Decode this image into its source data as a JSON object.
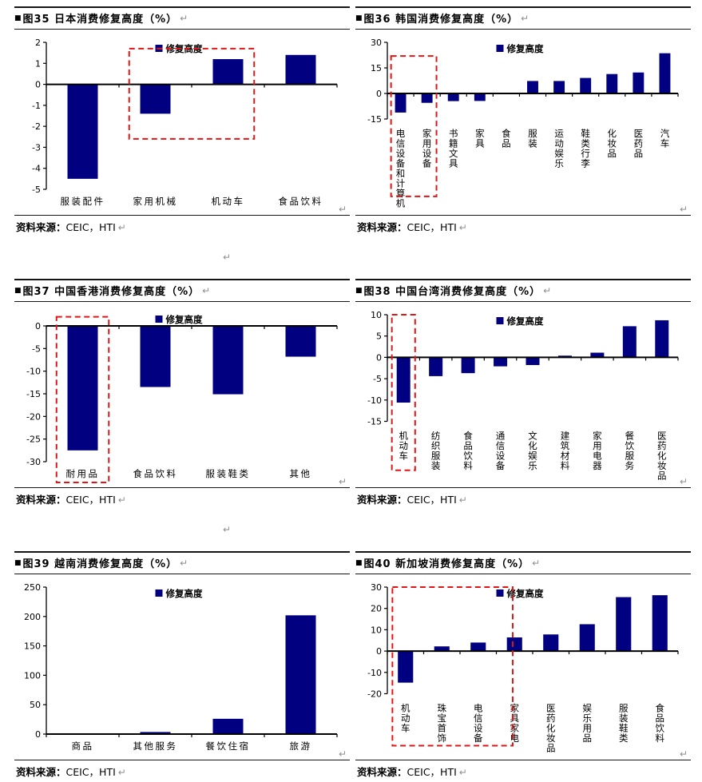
{
  "marks": {
    "paragraph": "↵",
    "bullet": "■"
  },
  "colors": {
    "bar": "#000080",
    "red_box": "#e01616",
    "axis": "#000000",
    "border": "#151515",
    "paragraph_mark": "#8f8f8f"
  },
  "source": {
    "label": "资料来源：",
    "value": "CEIC，HTI"
  },
  "figures": [
    {
      "title": "图35 日本消费修复高度（%）"
    },
    {
      "title": "图36 韩国消费修复高度（%）"
    },
    {
      "title": "图37 中国香港消费修复高度（%）"
    },
    {
      "title": "图38 中国台湾消费修复高度（%）"
    },
    {
      "title": "图39 越南消费修复高度（%）"
    },
    {
      "title": "图40 新加坡消费修复高度（%）"
    }
  ],
  "chart_data": [
    {
      "type": "bar",
      "title": "图35 日本消费修复高度（%）",
      "legend": "修复高度",
      "legend_position": "top-center",
      "grid": false,
      "categories": [
        "服装配件",
        "家用机械",
        "机动车",
        "食品饮料"
      ],
      "values": [
        -4.5,
        -1.4,
        1.2,
        1.4
      ],
      "ylim": [
        -5,
        2
      ],
      "yticks": [
        2,
        1,
        0,
        -1,
        -2,
        -3,
        -4,
        -5
      ],
      "label_orientation": "horizontal",
      "red_box": {
        "cat_from": 1,
        "cat_to": 2,
        "top_value": 1.7,
        "bottom_value": -2.6
      }
    },
    {
      "type": "bar",
      "title": "图36 韩国消费修复高度（%）",
      "legend": "修复高度",
      "legend_position": "top-center",
      "grid": false,
      "categories": [
        "电信设备和计算机",
        "家用设备",
        "书籍文具",
        "家具",
        "食品",
        "服装",
        "运动娱乐",
        "鞋类行李",
        "化妆品",
        "医药品",
        "汽车"
      ],
      "values": [
        -11.2,
        -5.5,
        -4.5,
        -4.4,
        0,
        7.3,
        7.3,
        9.1,
        11.4,
        12.3,
        23.6
      ],
      "ylim": [
        -15,
        30
      ],
      "yticks": [
        30,
        15,
        0,
        -15
      ],
      "label_orientation": "vertical",
      "red_box": {
        "cat_from": 0,
        "cat_to": 1,
        "top_value": 22,
        "bottom_label_frac": 0.85
      }
    },
    {
      "type": "bar",
      "title": "图37 中国香港消费修复高度（%）",
      "legend": "修复高度",
      "legend_position": "top-center",
      "grid": false,
      "categories": [
        "耐用品",
        "食品饮料",
        "服装鞋类",
        "其他"
      ],
      "values": [
        -27.5,
        -13.5,
        -15.1,
        -6.8
      ],
      "ylim": [
        -30,
        0
      ],
      "yticks": [
        0,
        -5,
        -10,
        -15,
        -20,
        -25,
        -30
      ],
      "label_orientation": "horizontal",
      "red_box": {
        "cat_from": 0,
        "cat_to": 0,
        "top_value": 2,
        "bottom_label_frac": 1.0
      }
    },
    {
      "type": "bar",
      "title": "图38 中国台湾消费修复高度（%）",
      "legend": "修复高度",
      "legend_position": "top-center",
      "grid": false,
      "categories": [
        "机动车",
        "纺织服装",
        "食品饮料",
        "通信设备",
        "文化娱乐",
        "建筑材料",
        "家用电器",
        "餐饮服务",
        "医药化妆品"
      ],
      "values": [
        -10.6,
        -4.4,
        -3.7,
        -2.1,
        -1.8,
        0.4,
        1.1,
        7.3,
        8.7
      ],
      "ylim": [
        -15,
        10
      ],
      "yticks": [
        10,
        5,
        0,
        -5,
        -10,
        -15
      ],
      "label_orientation": "vertical",
      "red_box": {
        "cat_from": 0,
        "cat_to": 0,
        "top_value": 10,
        "bottom_label_frac": 0.8
      }
    },
    {
      "type": "bar",
      "title": "图39 越南消费修复高度（%）",
      "legend": "修复高度",
      "legend_position": "top-center",
      "grid": false,
      "categories": [
        "商品",
        "其他服务",
        "餐饮住宿",
        "旅游"
      ],
      "values": [
        0.5,
        3.5,
        26,
        202
      ],
      "ylim": [
        0,
        250
      ],
      "yticks": [
        250,
        200,
        150,
        100,
        50,
        0
      ],
      "label_orientation": "horizontal",
      "red_box": null
    },
    {
      "type": "bar",
      "title": "图40 新加坡消费修复高度（%）",
      "legend": "修复高度",
      "legend_position": "top-center",
      "grid": false,
      "categories": [
        "机动车",
        "珠宝首饰",
        "电信设备",
        "家具家电",
        "医药化妆品",
        "娱乐用品",
        "服装鞋类",
        "食品饮料"
      ],
      "values": [
        -14.8,
        2.2,
        4.0,
        6.4,
        7.8,
        12.6,
        25.3,
        26.2
      ],
      "ylim": [
        -20,
        30
      ],
      "yticks": [
        30,
        20,
        10,
        0,
        -10,
        -20
      ],
      "label_orientation": "vertical",
      "red_box": {
        "cat_from": 0,
        "cat_to": 3,
        "top_value": 30,
        "bottom_label_frac": 0.85,
        "inset_right_frac": 0.55
      }
    }
  ]
}
